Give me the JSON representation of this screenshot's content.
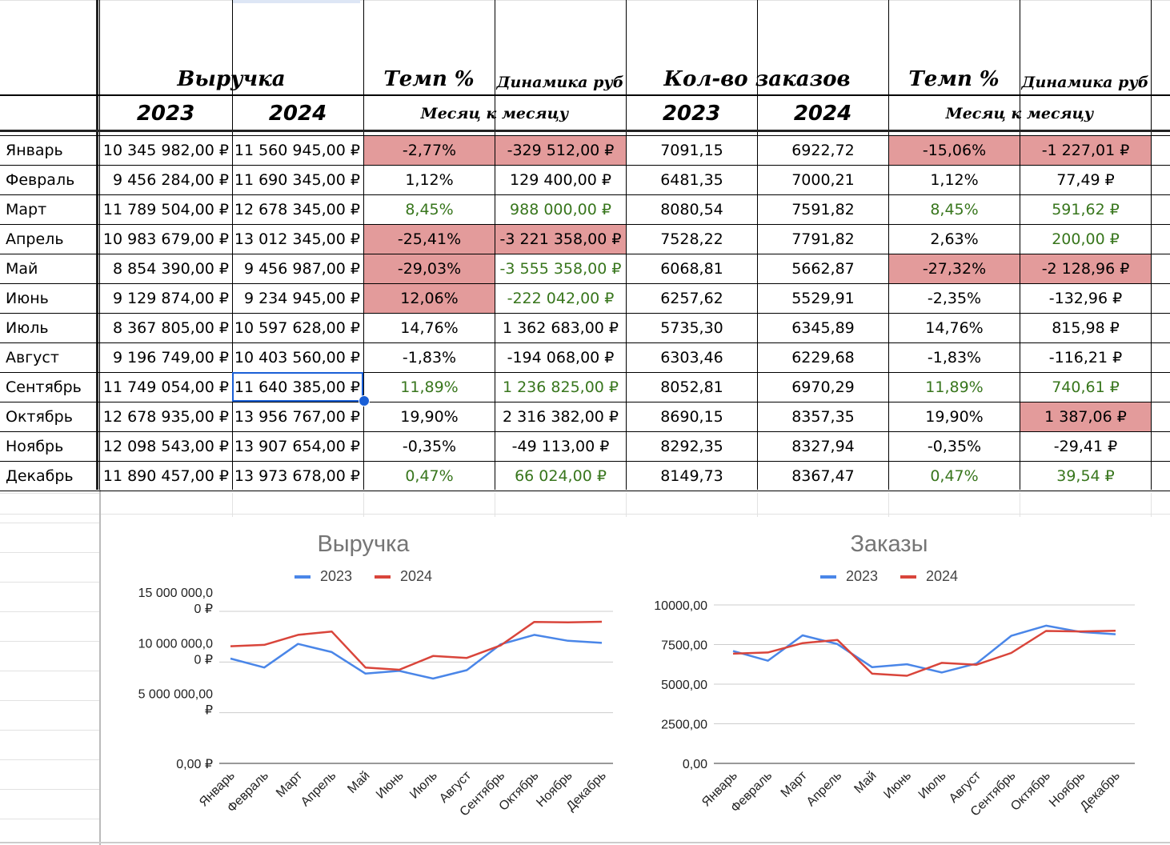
{
  "headers": {
    "revenue": "Выручка",
    "tempo": "Темп %",
    "dynamics": "Динамика руб",
    "orders": "Кол-во заказов",
    "tempo2": "Темп %",
    "dynamics2": "Динамика руб",
    "y2023a": "2023",
    "y2024a": "2024",
    "mom": "Месяц к месяцу",
    "y2023b": "2023",
    "y2024b": "2024",
    "mom2": "Месяц к месяцу"
  },
  "rows": [
    {
      "month": "Январь",
      "rev2023": "10 345 982,00 ₽",
      "rev2024": "11 560 945,00 ₽",
      "tempo": "-2,77%",
      "dyn": "-329 512,00 ₽",
      "ord2023": "7091,15",
      "ord2024": "6922,72",
      "tempo2": "-15,06%",
      "dyn2": "-1 227,01 ₽"
    },
    {
      "month": "Февраль",
      "rev2023": "9 456 284,00 ₽",
      "rev2024": "11 690 345,00 ₽",
      "tempo": "1,12%",
      "dyn": "129 400,00 ₽",
      "ord2023": "6481,35",
      "ord2024": "7000,21",
      "tempo2": "1,12%",
      "dyn2": "77,49 ₽"
    },
    {
      "month": "Март",
      "rev2023": "11 789 504,00 ₽",
      "rev2024": "12 678 345,00 ₽",
      "tempo": "8,45%",
      "dyn": "988 000,00 ₽",
      "ord2023": "8080,54",
      "ord2024": "7591,82",
      "tempo2": "8,45%",
      "dyn2": "591,62 ₽"
    },
    {
      "month": "Апрель",
      "rev2023": "10 983 679,00 ₽",
      "rev2024": "13 012 345,00 ₽",
      "tempo": "-25,41%",
      "dyn": "-3 221 358,00 ₽",
      "ord2023": "7528,22",
      "ord2024": "7791,82",
      "tempo2": "2,63%",
      "dyn2": "200,00 ₽"
    },
    {
      "month": "Май",
      "rev2023": "8 854 390,00 ₽",
      "rev2024": "9 456 987,00 ₽",
      "tempo": "-29,03%",
      "dyn": "-3 555 358,00 ₽",
      "ord2023": "6068,81",
      "ord2024": "5662,87",
      "tempo2": "-27,32%",
      "dyn2": "-2 128,96 ₽"
    },
    {
      "month": "Июнь",
      "rev2023": "9 129 874,00 ₽",
      "rev2024": "9 234 945,00 ₽",
      "tempo": "12,06%",
      "dyn": "-222 042,00 ₽",
      "ord2023": "6257,62",
      "ord2024": "5529,91",
      "tempo2": "-2,35%",
      "dyn2": "-132,96 ₽"
    },
    {
      "month": "Июль",
      "rev2023": "8 367 805,00 ₽",
      "rev2024": "10 597 628,00 ₽",
      "tempo": "14,76%",
      "dyn": "1 362 683,00 ₽",
      "ord2023": "5735,30",
      "ord2024": "6345,89",
      "tempo2": "14,76%",
      "dyn2": "815,98 ₽"
    },
    {
      "month": "Август",
      "rev2023": "9 196 749,00 ₽",
      "rev2024": "10 403 560,00 ₽",
      "tempo": "-1,83%",
      "dyn": "-194 068,00 ₽",
      "ord2023": "6303,46",
      "ord2024": "6229,68",
      "tempo2": "-1,83%",
      "dyn2": "-116,21 ₽"
    },
    {
      "month": "Сентябрь",
      "rev2023": "11 749 054,00 ₽",
      "rev2024": "11 640 385,00 ₽",
      "tempo": "11,89%",
      "dyn": "1 236 825,00 ₽",
      "ord2023": "8052,81",
      "ord2024": "6970,29",
      "tempo2": "11,89%",
      "dyn2": "740,61 ₽"
    },
    {
      "month": "Октябрь",
      "rev2023": "12 678 935,00 ₽",
      "rev2024": "13 956 767,00 ₽",
      "tempo": "19,90%",
      "dyn": "2 316 382,00 ₽",
      "ord2023": "8690,15",
      "ord2024": "8357,35",
      "tempo2": "19,90%",
      "dyn2": "1 387,06 ₽"
    },
    {
      "month": "Ноябрь",
      "rev2023": "12 098 543,00 ₽",
      "rev2024": "13 907 654,00 ₽",
      "tempo": "-0,35%",
      "dyn": "-49 113,00 ₽",
      "ord2023": "8292,35",
      "ord2024": "8327,94",
      "tempo2": "-0,35%",
      "dyn2": "-29,41 ₽"
    },
    {
      "month": "Декабрь",
      "rev2023": "11 890 457,00 ₽",
      "rev2024": "13 973 678,00 ₽",
      "tempo": "0,47%",
      "dyn": "66 024,00 ₽",
      "ord2023": "8149,73",
      "ord2024": "8367,47",
      "tempo2": "0,47%",
      "dyn2": "39,54 ₽"
    }
  ],
  "cell_styles": {
    "red_fill": "#e39b9b",
    "green_text": "#38761d",
    "tempo_red": [
      true,
      false,
      false,
      true,
      true,
      true,
      false,
      false,
      false,
      false,
      false,
      false
    ],
    "dyn_red": [
      true,
      false,
      false,
      true,
      false,
      false,
      false,
      false,
      false,
      false,
      false,
      false
    ],
    "tempo_green": [
      false,
      false,
      true,
      false,
      false,
      false,
      false,
      false,
      true,
      false,
      false,
      true
    ],
    "dyn_green": [
      false,
      false,
      true,
      false,
      true,
      true,
      false,
      false,
      true,
      false,
      false,
      true
    ],
    "tempo2_red": [
      true,
      false,
      false,
      false,
      true,
      false,
      false,
      false,
      false,
      false,
      false,
      false
    ],
    "dyn2_red": [
      true,
      false,
      false,
      false,
      true,
      false,
      false,
      false,
      false,
      true,
      false,
      false
    ],
    "tempo2_green": [
      false,
      false,
      true,
      false,
      false,
      false,
      false,
      false,
      true,
      false,
      false,
      true
    ],
    "dyn2_green": [
      false,
      false,
      true,
      true,
      false,
      false,
      false,
      false,
      true,
      false,
      false,
      true
    ],
    "selected_cell": "rev2024-row-9",
    "selection_color": "#1a5fd6"
  },
  "chart_data": [
    {
      "type": "line",
      "title": "Выручка",
      "categories": [
        "Январь",
        "Февраль",
        "Март",
        "Апрель",
        "Май",
        "Июнь",
        "Июль",
        "Август",
        "Сентябрь",
        "Октябрь",
        "Ноябрь",
        "Декабрь"
      ],
      "series": [
        {
          "name": "2023",
          "color": "#4a86e8",
          "values": [
            10345982,
            9456284,
            11789504,
            10983679,
            8854390,
            9129874,
            8367805,
            9196749,
            11749054,
            12678935,
            12098543,
            11890457
          ]
        },
        {
          "name": "2024",
          "color": "#d9453b",
          "values": [
            11560945,
            11690345,
            12678345,
            13012345,
            9456987,
            9234945,
            10597628,
            10403560,
            11640385,
            13956767,
            13907654,
            13973678
          ]
        }
      ],
      "yticks": [
        0,
        5000000,
        10000000,
        15000000
      ],
      "ytick_labels": [
        [
          "0,00 ₽"
        ],
        [
          "5 000 000,00",
          "₽"
        ],
        [
          "10 000 000,0",
          "0 ₽"
        ],
        [
          "15 000 000,0",
          "0 ₽"
        ]
      ],
      "ylim": [
        0,
        15000000
      ],
      "grid": true,
      "legend": "top"
    },
    {
      "type": "line",
      "title": "Заказы",
      "categories": [
        "Январь",
        "Февраль",
        "Март",
        "Апрель",
        "Май",
        "Июнь",
        "Июль",
        "Август",
        "Сентябрь",
        "Октябрь",
        "Ноябрь",
        "Декабрь"
      ],
      "series": [
        {
          "name": "2023",
          "color": "#4a86e8",
          "values": [
            7091.15,
            6481.35,
            8080.54,
            7528.22,
            6068.81,
            6257.62,
            5735.3,
            6303.46,
            8052.81,
            8690.15,
            8292.35,
            8149.73
          ]
        },
        {
          "name": "2024",
          "color": "#d9453b",
          "values": [
            6922.72,
            7000.21,
            7591.82,
            7791.82,
            5662.87,
            5529.91,
            6345.89,
            6229.68,
            6970.29,
            8357.35,
            8327.94,
            8367.47
          ]
        }
      ],
      "yticks": [
        0,
        2500,
        5000,
        7500,
        10000
      ],
      "ytick_labels": [
        [
          "0,00"
        ],
        [
          "2500,00"
        ],
        [
          "5000,00"
        ],
        [
          "7500,00"
        ],
        [
          "10000,00"
        ]
      ],
      "ylim": [
        0,
        10000
      ],
      "grid": true,
      "legend": "top"
    }
  ]
}
